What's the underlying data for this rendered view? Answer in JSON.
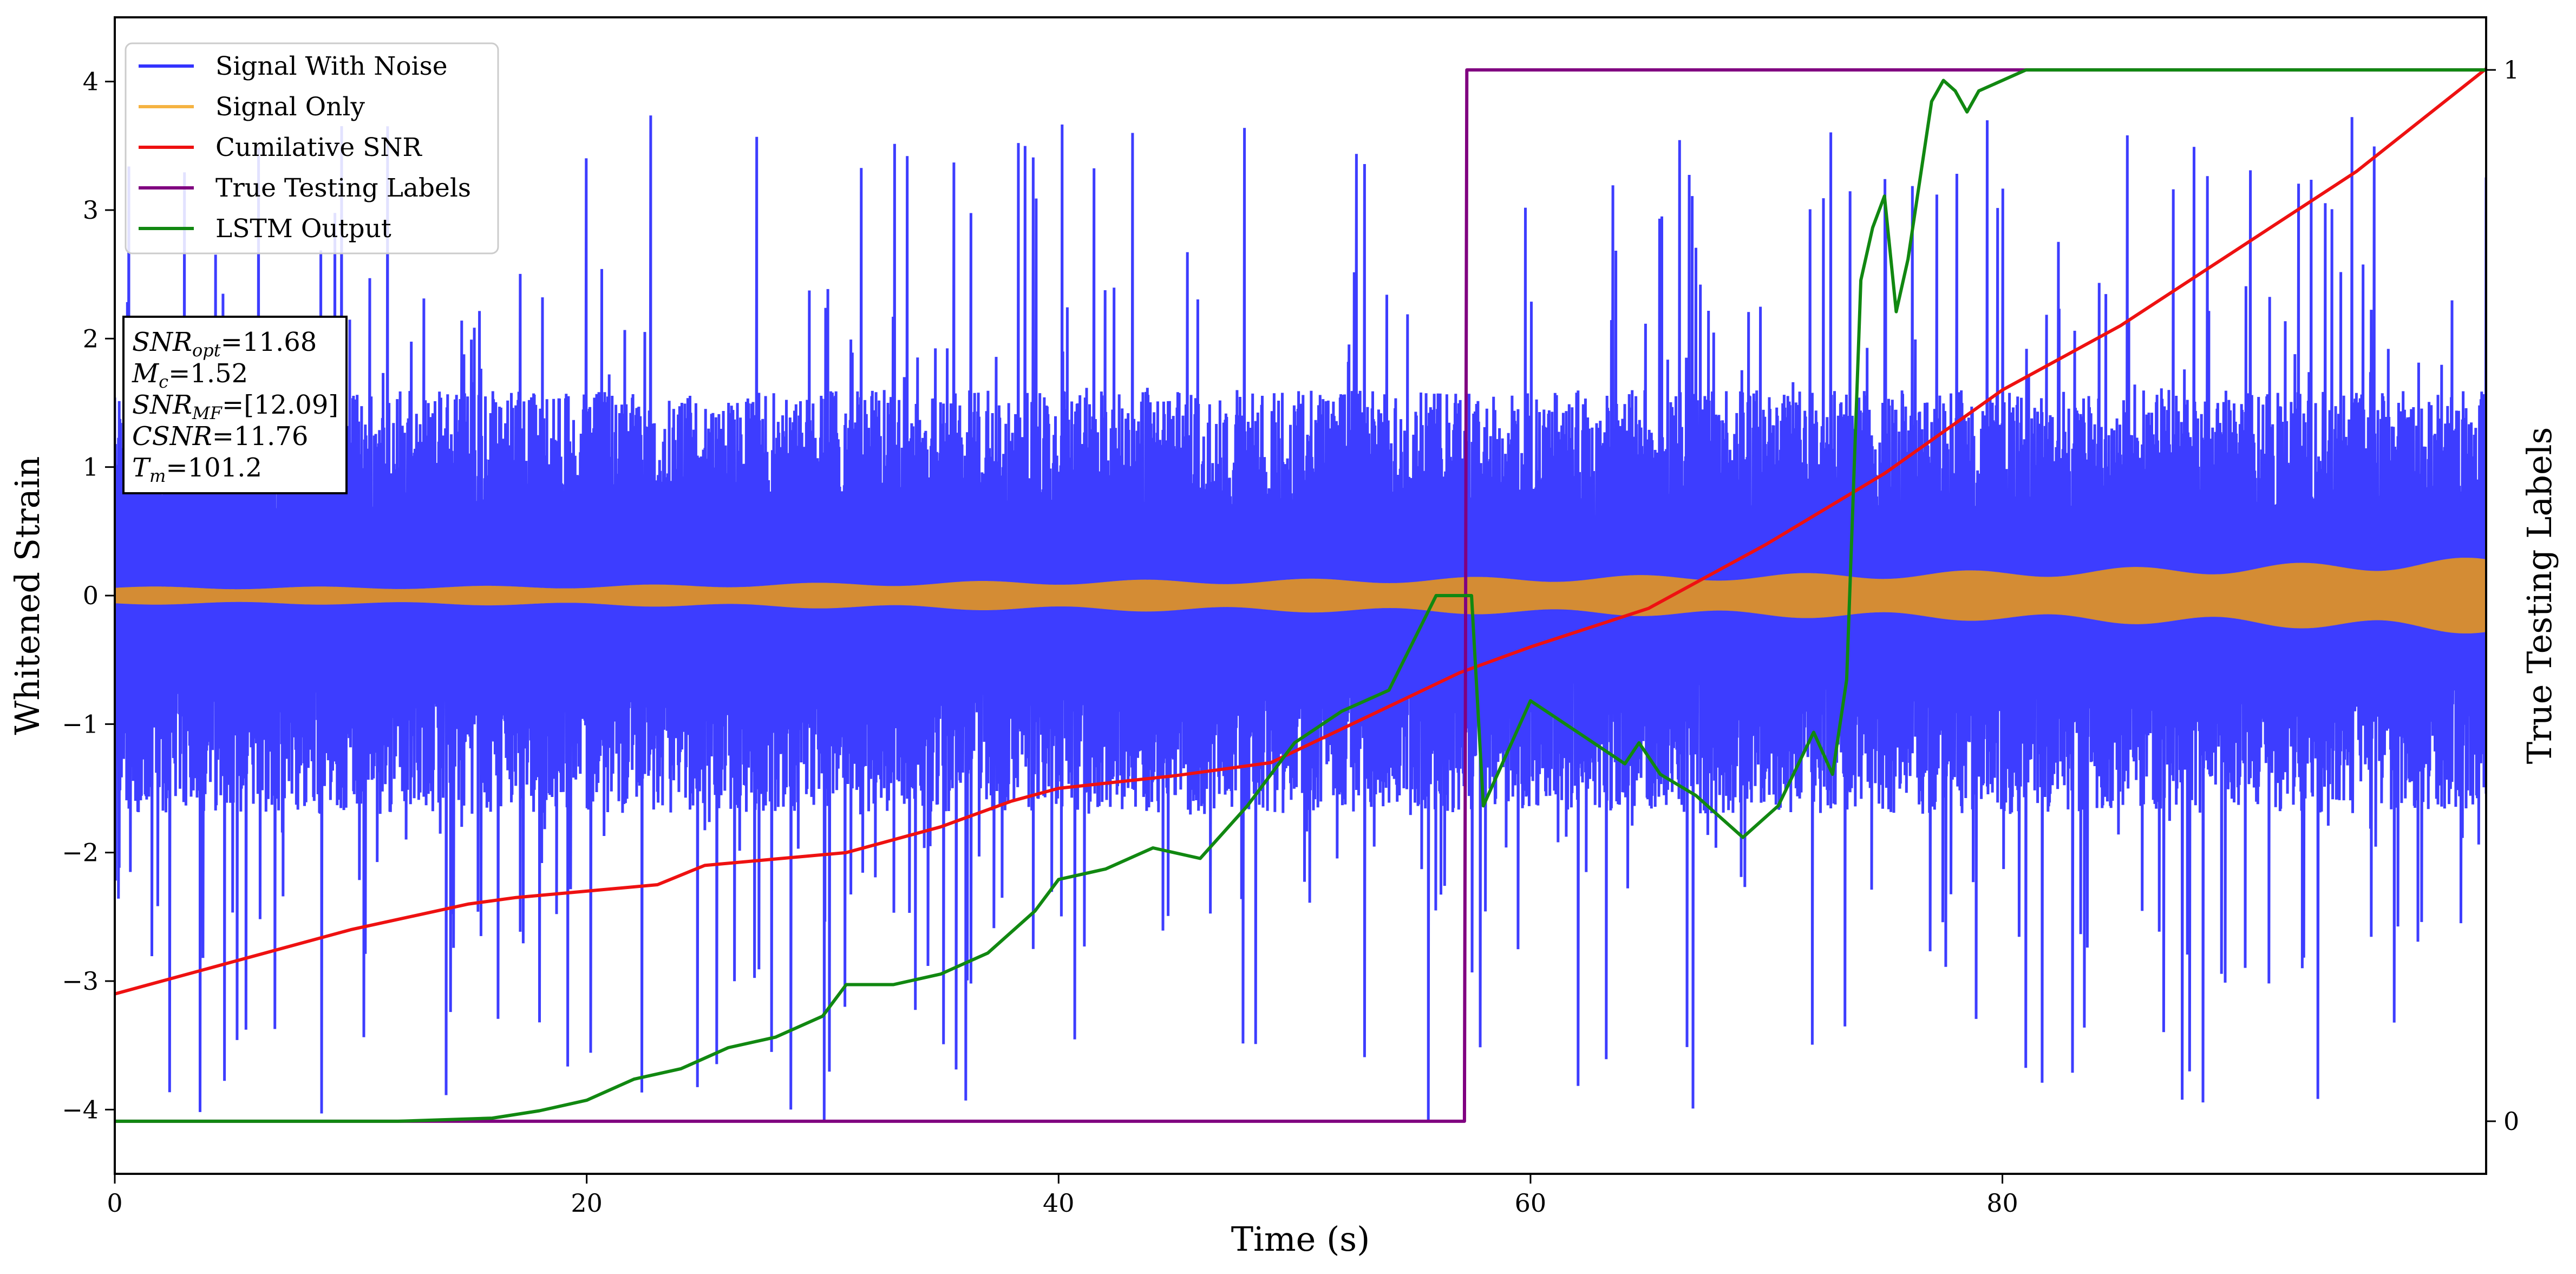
{
  "chart_data": {
    "type": "line",
    "title": "",
    "xlabel": "Time (s)",
    "ylabel": "Whitened Strain",
    "y2label": "True Testing Labels",
    "xlim": [
      0,
      100.5
    ],
    "ylim": [
      -4.5,
      4.5
    ],
    "y2lim": [
      -0.05,
      1.05
    ],
    "xticks": [
      0,
      20,
      40,
      60,
      80
    ],
    "yticks": [
      -4,
      -3,
      -2,
      -1,
      0,
      1,
      2,
      3,
      4
    ],
    "y2ticks": [
      0,
      1
    ],
    "grid": false,
    "legend_position": "top-left",
    "legend": [
      {
        "name": "Signal With Noise",
        "color": "#3333ff"
      },
      {
        "name": "Signal Only",
        "color": "#f5b342"
      },
      {
        "name": "Cumilative SNR",
        "color": "#ee1111"
      },
      {
        "name": "True Testing Labels",
        "color": "#800080"
      },
      {
        "name": "LSTM Output",
        "color": "#118811"
      }
    ],
    "annotation": [
      {
        "base": "SNR",
        "sub": "opt",
        "value": "=11.68"
      },
      {
        "base": "M",
        "sub": "c",
        "value": "=1.52"
      },
      {
        "base": "SNR",
        "sub": "MF",
        "value": "=[12.09]"
      },
      {
        "base": "CSNR",
        "sub": "",
        "value": "=11.76"
      },
      {
        "base": "T",
        "sub": "m",
        "value": "=101.2"
      }
    ],
    "series": [
      {
        "name": "Signal With Noise",
        "axis": "left",
        "color": "#3333ff",
        "style": "dense-noise",
        "band_typical": [
          -1.7,
          1.6
        ],
        "peak_max": 3.75,
        "peak_min": -4.1
      },
      {
        "name": "Signal Only",
        "axis": "left",
        "color": "#d48c34",
        "style": "chirp-band",
        "x": [
          0,
          10,
          20,
          30,
          40,
          50,
          60,
          70,
          80,
          90,
          100.5
        ],
        "amplitude": [
          0.07,
          0.07,
          0.08,
          0.1,
          0.12,
          0.13,
          0.15,
          0.17,
          0.2,
          0.24,
          0.3
        ]
      },
      {
        "name": "Cumilative SNR",
        "axis": "left",
        "color": "#ee1111",
        "style": "line",
        "x": [
          0,
          5,
          10,
          15,
          17,
          20,
          23,
          25,
          28,
          31,
          35,
          38,
          40,
          45,
          49,
          53,
          57,
          60,
          65,
          70,
          75,
          80,
          85,
          90,
          95,
          100.5
        ],
        "y": [
          -3.1,
          -2.85,
          -2.6,
          -2.4,
          -2.35,
          -2.3,
          -2.25,
          -2.1,
          -2.05,
          -2.0,
          -1.8,
          -1.6,
          -1.5,
          -1.4,
          -1.3,
          -0.95,
          -0.6,
          -0.4,
          -0.1,
          0.4,
          0.95,
          1.6,
          2.1,
          2.7,
          3.3,
          4.1
        ]
      },
      {
        "name": "True Testing Labels",
        "axis": "right",
        "color": "#800080",
        "style": "step",
        "x": [
          0,
          57.2,
          57.3,
          100.5
        ],
        "y": [
          0,
          0,
          1,
          1
        ]
      },
      {
        "name": "LSTM Output",
        "axis": "right",
        "color": "#118811",
        "style": "line",
        "x": [
          0,
          12,
          16,
          18,
          20,
          22,
          24,
          26,
          28,
          30,
          31,
          33,
          35,
          37,
          39,
          40,
          42,
          44,
          46,
          48,
          50,
          52,
          54,
          56,
          57.5,
          58,
          60,
          62,
          64,
          64.6,
          65.5,
          67,
          69,
          70.5,
          72,
          72.8,
          73.4,
          74,
          74.5,
          75,
          75.5,
          76,
          77,
          77.5,
          78,
          78.5,
          79,
          80,
          81,
          82,
          85,
          90,
          100.5
        ],
        "y": [
          0,
          0,
          0.003,
          0.01,
          0.02,
          0.04,
          0.05,
          0.07,
          0.08,
          0.1,
          0.13,
          0.13,
          0.14,
          0.16,
          0.2,
          0.23,
          0.24,
          0.26,
          0.25,
          0.3,
          0.36,
          0.39,
          0.41,
          0.5,
          0.5,
          0.3,
          0.4,
          0.37,
          0.34,
          0.36,
          0.33,
          0.31,
          0.27,
          0.3,
          0.37,
          0.33,
          0.42,
          0.8,
          0.85,
          0.88,
          0.77,
          0.82,
          0.97,
          0.99,
          0.98,
          0.96,
          0.98,
          0.99,
          1.0,
          1.0,
          1.0,
          1.0,
          1.0
        ]
      }
    ]
  }
}
